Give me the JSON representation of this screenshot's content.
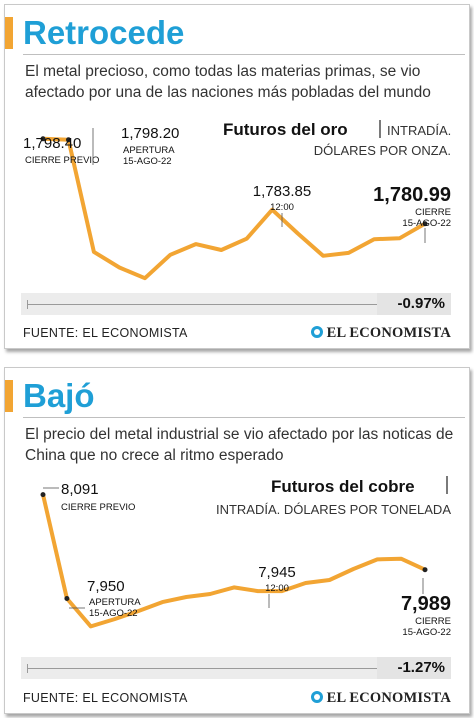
{
  "gold": {
    "title": "Retrocede",
    "subtitle": "El metal precioso, como todas las materias primas, se vio afectado por una de las naciones más pobladas del mundo",
    "chart_title": "Futuros del oro",
    "chart_subtitle_1": "INTRADÍA.",
    "chart_subtitle_2": "DÓLARES POR ONZA.",
    "change": "-0.97%",
    "source": "FUENTE: EL ECONOMISTA",
    "brand": "EL ECONOMISTA",
    "labels": {
      "prev_value": "1,798.40",
      "prev_caption": "CIERRE PREVIO",
      "open_value": "1,798.20",
      "open_caption_1": "APERTURA",
      "open_caption_2": "15-AGO-22",
      "mid_value": "1,783.85",
      "mid_caption": "12:00",
      "close_value": "1,780.99",
      "close_caption_1": "CIERRE",
      "close_caption_2": "15-AGO-22"
    }
  },
  "copper": {
    "title": "Bajó",
    "subtitle": "El precio del metal industrial se vio afectado por las noticas de China que no crece al ritmo esperado",
    "chart_title": "Futuros del cobre",
    "chart_subtitle_1": "INTRADÍA. DÓLARES POR TONELADA",
    "change": "-1.27%",
    "source": "FUENTE: EL ECONOMISTA",
    "brand": "EL ECONOMISTA",
    "labels": {
      "prev_value": "8,091",
      "prev_caption": "CIERRE PREVIO",
      "open_value": "7,950",
      "open_caption_1": "APERTURA",
      "open_caption_2": "15-AGO-22",
      "mid_value": "7,945",
      "mid_caption": "12:00",
      "close_value": "7,989",
      "close_caption_1": "CIERRE",
      "close_caption_2": "15-AGO-22"
    }
  },
  "colors": {
    "line": "#f2a533",
    "title": "#1f9fd6",
    "accent_bar": "#f2a533"
  },
  "chart_data": [
    {
      "type": "line",
      "title": "Futuros del oro",
      "ylim": [
        1768,
        1800
      ],
      "series": [
        {
          "values": [
            1798.4,
            1798.2,
            1775.2,
            1772.0,
            1769.8,
            1774.6,
            1776.8,
            1775.6,
            1777.9,
            1783.85,
            1779.0,
            1774.4,
            1775.0,
            1777.8,
            1778.0,
            1780.99
          ]
        }
      ]
    },
    {
      "type": "line",
      "title": "Futuros del cobre",
      "ylim": [
        7880,
        8100
      ],
      "series": [
        {
          "values": [
            8091,
            7950,
            7912,
            7922,
            7933,
            7945,
            7952,
            7956,
            7965,
            7960,
            7960,
            7971,
            7975,
            7990,
            8003,
            8004,
            7989
          ]
        }
      ]
    }
  ]
}
